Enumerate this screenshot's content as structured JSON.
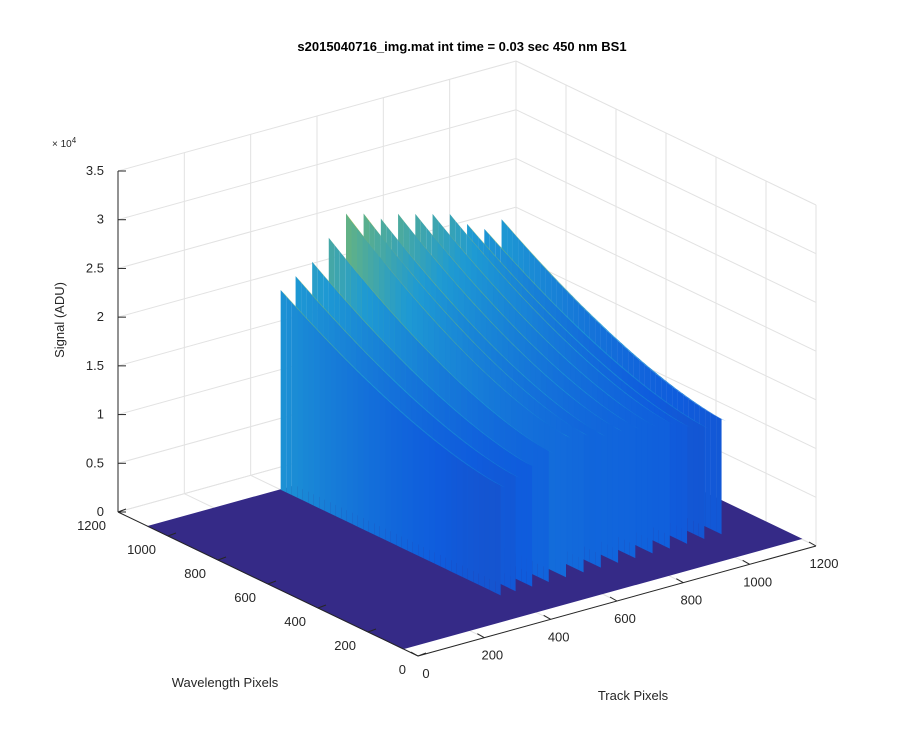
{
  "chart_data": {
    "type": "surface",
    "title": "s2015040716_img.mat int time = 0.03 sec  450 nm BS1",
    "xlabel": "Track Pixels",
    "ylabel": "Wavelength Pixels",
    "zlabel": "Signal (ADU)",
    "z_exponent_label": "× 10",
    "z_exponent_power": "4",
    "xlim": [
      0,
      1200
    ],
    "ylim": [
      0,
      1200
    ],
    "zlim": [
      0,
      35000
    ],
    "x_ticks": [
      "0",
      "200",
      "400",
      "600",
      "800",
      "1000",
      "1200"
    ],
    "y_ticks": [
      "0",
      "200",
      "400",
      "600",
      "800",
      "1000",
      "1200"
    ],
    "z_ticks": [
      "0",
      "0.5",
      "1",
      "1.5",
      "2",
      "2.5",
      "3",
      "3.5"
    ],
    "grid": true,
    "colormap": "parula",
    "track_peaks": [
      {
        "x": 400,
        "peak": 20500
      },
      {
        "x": 445,
        "peak": 21500
      },
      {
        "x": 495,
        "peak": 22500
      },
      {
        "x": 545,
        "peak": 24500
      },
      {
        "x": 597,
        "peak": 26500
      },
      {
        "x": 650,
        "peak": 26000
      },
      {
        "x": 702,
        "peak": 25000
      },
      {
        "x": 754,
        "peak": 25000
      },
      {
        "x": 806,
        "peak": 24500
      },
      {
        "x": 858,
        "peak": 24000
      },
      {
        "x": 910,
        "peak": 23500
      },
      {
        "x": 962,
        "peak": 22000
      },
      {
        "x": 1014,
        "peak": 21000
      },
      {
        "x": 1066,
        "peak": 21500
      }
    ],
    "wavelength_range": [
      60,
      1080
    ],
    "background_level": 0,
    "colors": {
      "floor": "#352a87",
      "low": "#0f5cdd",
      "mid": "#1e9ad3",
      "high_green": "#7fbc63",
      "high_yellow": "#e8b83a"
    }
  }
}
